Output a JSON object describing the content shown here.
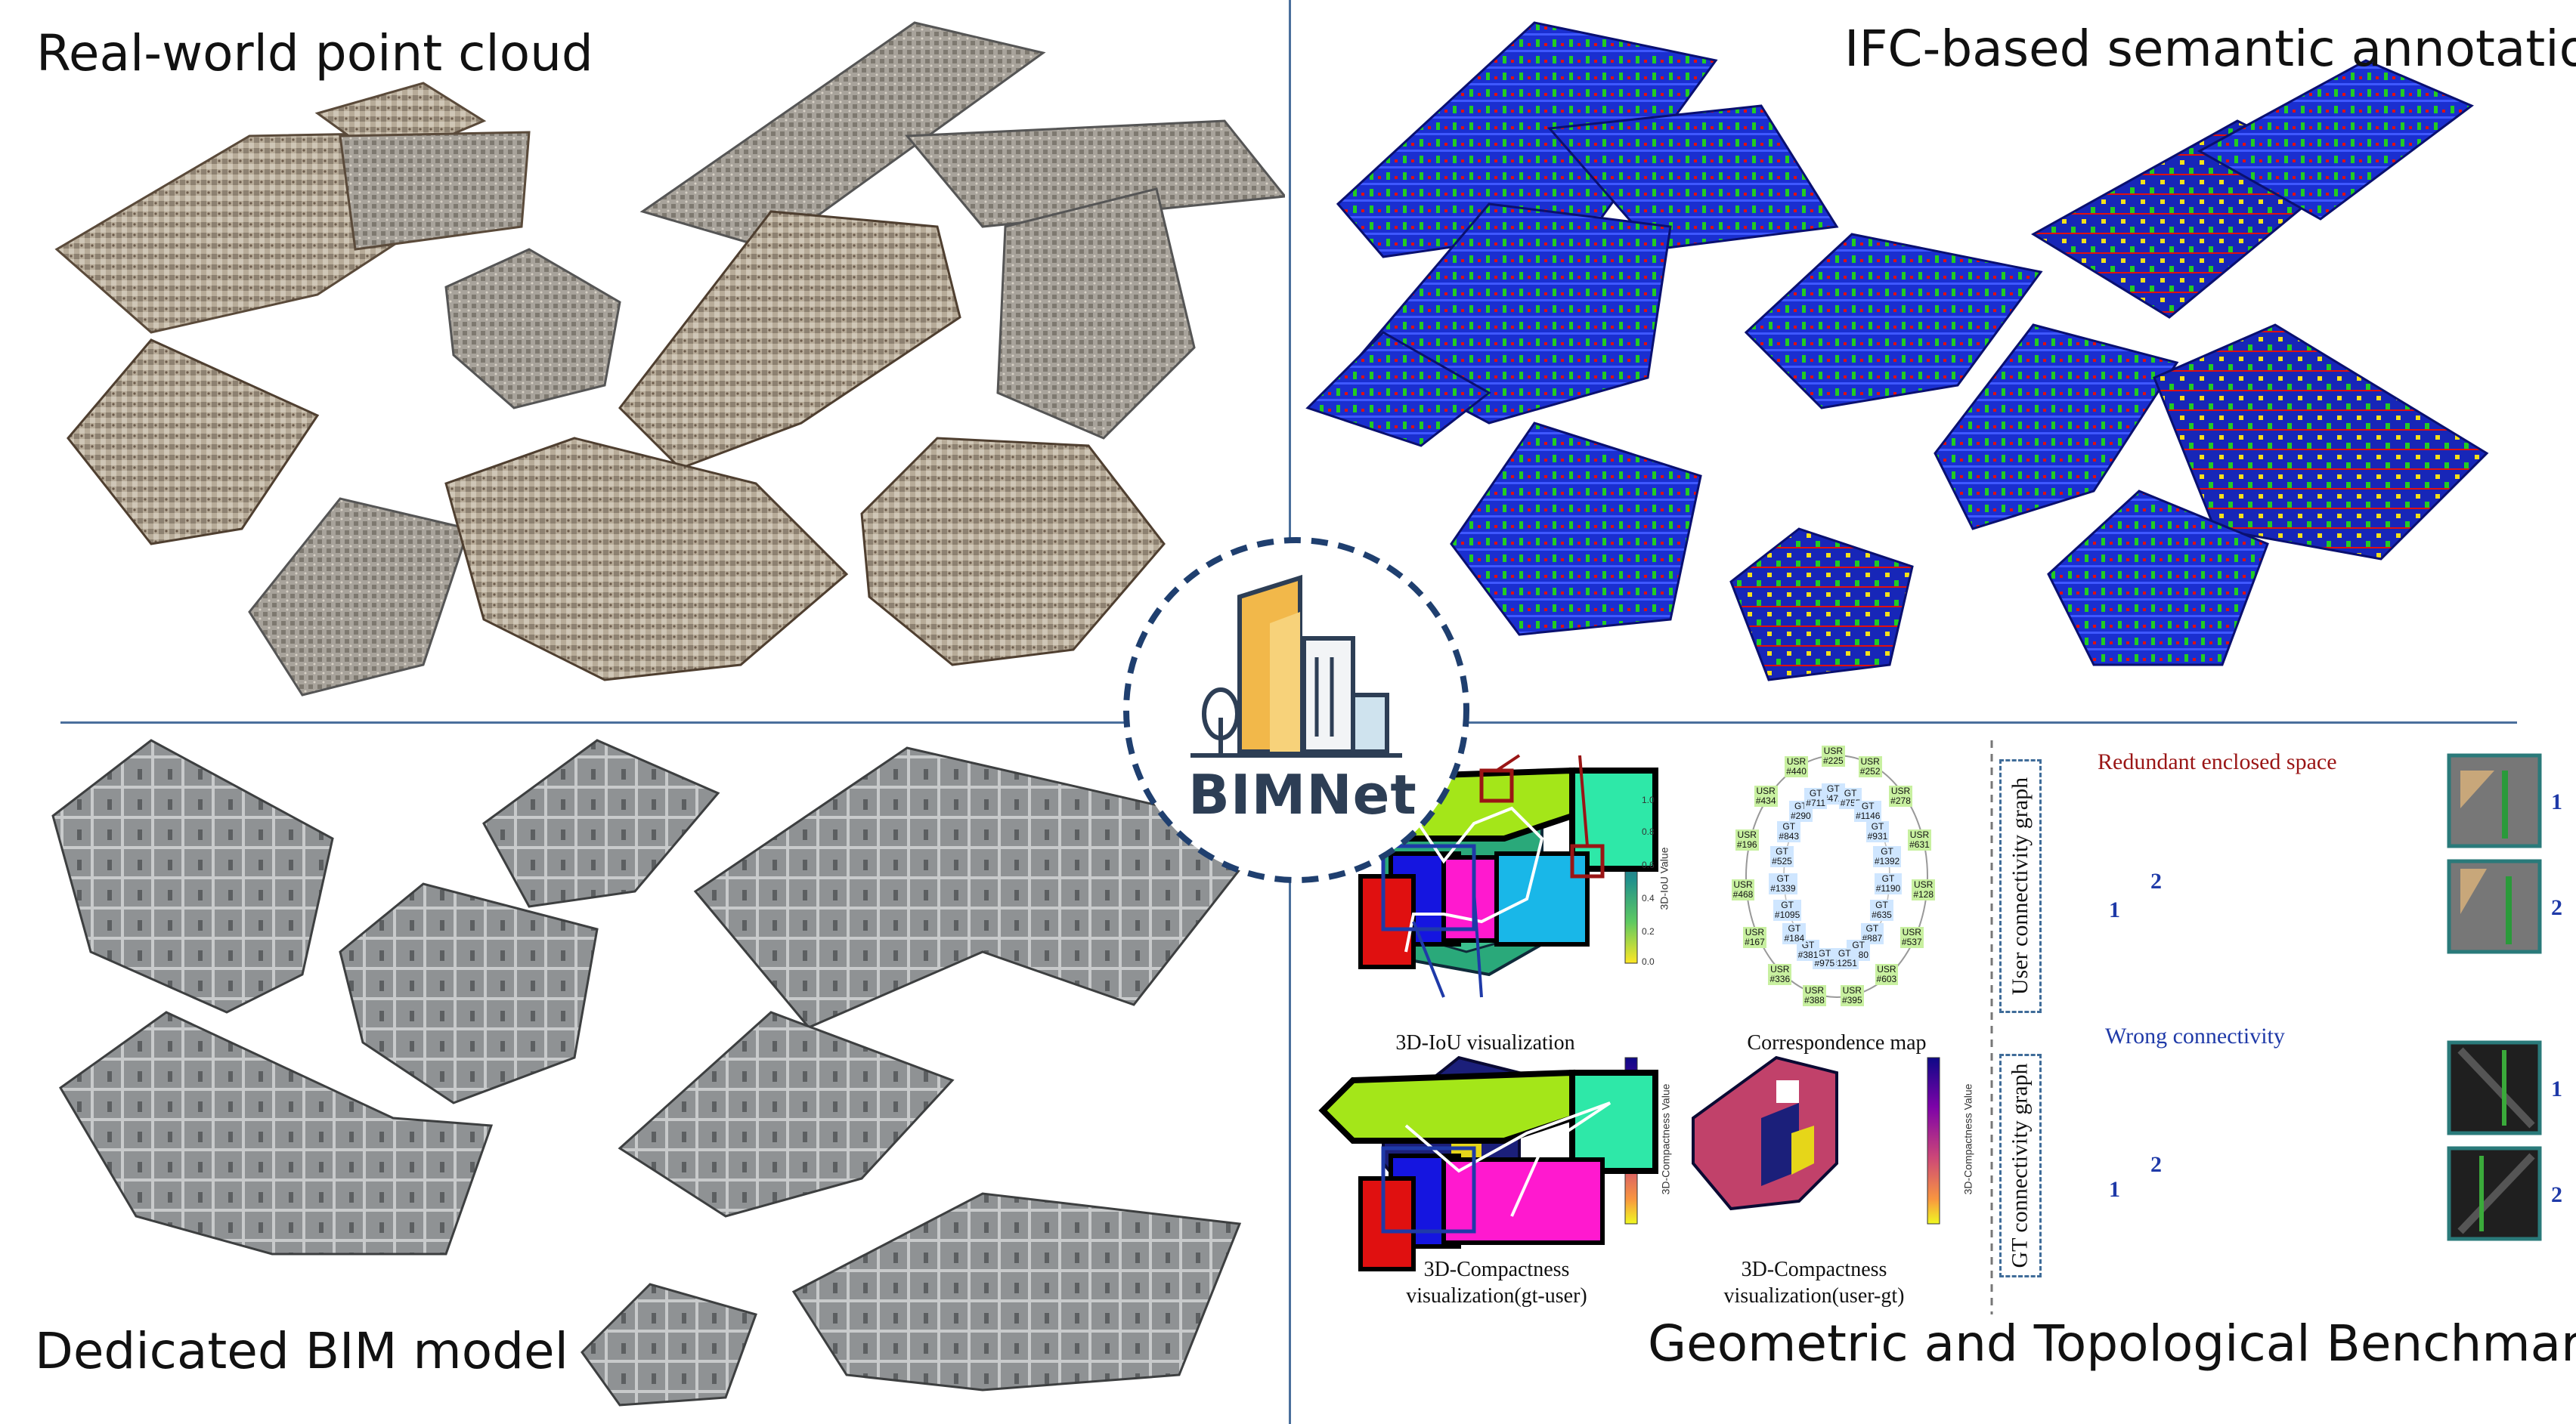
{
  "quadrants": {
    "top_left_title": "Real-world point cloud",
    "top_right_title": "IFC-based semantic annotation",
    "bottom_left_title": "Dedicated BIM model",
    "bottom_right_title": "Geometric and Topological Benchmark"
  },
  "logo": {
    "text": "BIMNet"
  },
  "benchmark": {
    "captions": {
      "iou": "3D-IoU visualization",
      "correspondence": "Correspondence map",
      "compact_gt_user_1": "3D-Compactness",
      "compact_gt_user_2": "visualization(gt-user)",
      "compact_user_gt_1": "3D-Compactness",
      "compact_user_gt_2": "visualization(user-gt)"
    },
    "colorbars": {
      "iou_label": "3D-IoU Value",
      "compact_label": "3D-Compactness Value",
      "ticks": [
        "1.0",
        "0.8",
        "0.6",
        "0.4",
        "0.2",
        "0.0"
      ]
    },
    "graph_labels": {
      "user": "User connectivity graph",
      "gt": "GT connectivity graph"
    },
    "annotations": {
      "redundant": "Redundant enclosed space",
      "wrong": "Wrong connectivity"
    },
    "numbers": {
      "one": "1",
      "two": "2"
    },
    "correspondence_nodes": [
      {
        "label": "USR\n#225"
      },
      {
        "label": "USR\n#252"
      },
      {
        "label": "USR\n#278"
      },
      {
        "label": "USR\n#631"
      },
      {
        "label": "USR\n#128"
      },
      {
        "label": "USR\n#537"
      },
      {
        "label": "USR\n#603"
      },
      {
        "label": "USR\n#395"
      },
      {
        "label": "USR\n#388"
      },
      {
        "label": "USR\n#336"
      },
      {
        "label": "USR\n#167"
      },
      {
        "label": "USR\n#468"
      },
      {
        "label": "USR\n#196"
      },
      {
        "label": "USR\n#434"
      },
      {
        "label": "USR\n#440"
      }
    ],
    "gt_nodes": [
      {
        "label": "GT\n#472"
      },
      {
        "label": "GT\n#755"
      },
      {
        "label": "GT\n#1146"
      },
      {
        "label": "GT\n#931"
      },
      {
        "label": "GT\n#1392"
      },
      {
        "label": "GT\n#1190"
      },
      {
        "label": "GT\n#635"
      },
      {
        "label": "GT\n#887"
      },
      {
        "label": "GT\n#580"
      },
      {
        "label": "GT\n#1251"
      },
      {
        "label": "GT\n#975"
      },
      {
        "label": "GT\n#381"
      },
      {
        "label": "GT\n#184"
      },
      {
        "label": "GT\n#1095"
      },
      {
        "label": "GT\n#1339"
      },
      {
        "label": "GT\n#525"
      },
      {
        "label": "GT\n#843"
      },
      {
        "label": "GT\n#290"
      },
      {
        "label": "GT\n#711"
      }
    ]
  },
  "colors": {
    "divider": "#4a6f9c",
    "semantic_blue": "#1a2fd0",
    "semantic_green": "#22cc22",
    "semantic_red": "#e01010",
    "semantic_yellow": "#f5e01a",
    "bim_gray": "#8f9294",
    "pointcloud_tone": "#9c8f7e"
  }
}
